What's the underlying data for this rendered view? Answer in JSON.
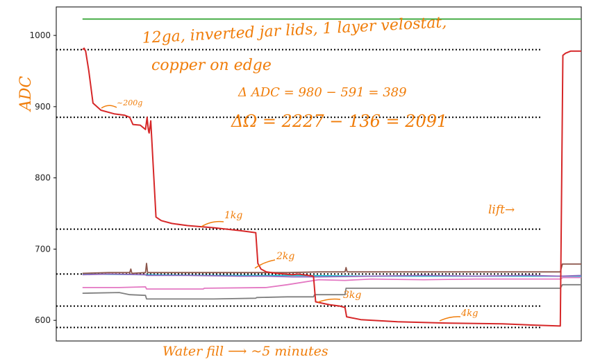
{
  "chart_data": {
    "type": "line",
    "ylim": [
      571,
      1040
    ],
    "xlim": [
      0,
      100
    ],
    "yticks": [
      600,
      700,
      800,
      900,
      1000
    ],
    "ytick_labels": [
      "600",
      "700",
      "800",
      "900",
      "1000"
    ],
    "grid": false,
    "series": [
      {
        "color": "#2ca02c",
        "x": [
          5,
          100
        ],
        "y": [
          1023,
          1023
        ]
      },
      {
        "color": "#d62728",
        "x": [
          5,
          5.3,
          5.6,
          6.2,
          7,
          8.5,
          11,
          13,
          14,
          14.3,
          14.6,
          16,
          17,
          17.3,
          17.5,
          17.6,
          17.7,
          18,
          19,
          20,
          22,
          25,
          30,
          35,
          38,
          38.4,
          39,
          40,
          42,
          45,
          46,
          48,
          49,
          49.4,
          52,
          54,
          55,
          55.3,
          58,
          65,
          75,
          85,
          92,
          96,
          96.5,
          97,
          98,
          100
        ],
        "y": [
          980,
          982,
          978,
          950,
          905,
          895,
          890,
          888,
          885,
          880,
          875,
          874,
          868,
          885,
          870,
          865,
          863,
          880,
          745,
          740,
          736,
          733,
          730,
          726,
          723,
          680,
          672,
          668,
          666,
          664,
          665,
          663,
          662,
          626,
          622,
          620,
          618,
          605,
          601,
          598,
          596,
          595,
          593,
          592,
          972,
          975,
          978,
          978
        ]
      },
      {
        "color": "#8c564b",
        "x": [
          5,
          10,
          14,
          14.2,
          14.4,
          17,
          17.2,
          17.4,
          20,
          30,
          40,
          44,
          50,
          55,
          55.2,
          55.4,
          70,
          96,
          96.4,
          100
        ],
        "y": [
          666,
          667,
          667,
          672,
          666,
          667,
          680,
          667,
          667,
          667,
          667,
          667,
          668,
          668,
          674,
          668,
          668,
          668,
          679,
          679
        ]
      },
      {
        "color": "#9467bd",
        "x": [
          5,
          10,
          17,
          17.2,
          25,
          35,
          40,
          45,
          50,
          60,
          70,
          80,
          90,
          96,
          100
        ],
        "y": [
          664,
          665,
          664,
          663,
          663,
          662,
          662,
          661,
          661,
          662,
          663,
          662,
          663,
          662,
          663
        ]
      },
      {
        "color": "#17becf",
        "x": [
          5,
          17,
          30,
          45,
          60,
          75,
          90,
          100
        ],
        "y": [
          665,
          664,
          663,
          663,
          662,
          662,
          662,
          662
        ]
      },
      {
        "color": "#e377c2",
        "x": [
          5,
          12,
          17,
          17.2,
          28,
          28.2,
          40,
          44,
          50,
          55,
          60,
          70,
          80,
          90,
          96,
          96.5,
          100
        ],
        "y": [
          646,
          646,
          647,
          644,
          644,
          645,
          646,
          650,
          657,
          656,
          658,
          657,
          658,
          658,
          658,
          660,
          660
        ]
      },
      {
        "color": "#7f7f7f",
        "x": [
          5,
          12,
          14,
          17,
          17.2,
          30,
          38,
          38.2,
          44,
          49,
          49.2,
          55,
          55.2,
          70,
          96,
          96.4,
          100
        ],
        "y": [
          638,
          639,
          636,
          635,
          630,
          630,
          631,
          632,
          633,
          633,
          636,
          636,
          645,
          645,
          645,
          650,
          650
        ]
      }
    ],
    "reference_lines": [
      980,
      885,
      728,
      665,
      620,
      590
    ],
    "annotations": [
      {
        "id": "title",
        "lines": [
          "12ga, inverted jar lids, 1 layer velostat,",
          "copper on edge"
        ]
      },
      {
        "id": "delta-adc",
        "text": "Δ ADC = 980 − 591 = 389"
      },
      {
        "id": "delta-ohm",
        "text": "ΔΩ = 2227 − 136 = 2091"
      },
      {
        "id": "w200",
        "text": "~200g"
      },
      {
        "id": "w1kg",
        "text": "1kg"
      },
      {
        "id": "w2kg",
        "text": "2kg"
      },
      {
        "id": "w3kg",
        "text": "3kg"
      },
      {
        "id": "w4kg",
        "text": "4kg"
      },
      {
        "id": "lift",
        "text": "lift→"
      },
      {
        "id": "ylabel",
        "text": "ADC"
      },
      {
        "id": "xlabel",
        "text": "Water fill ⟶ ~5 minutes"
      }
    ]
  }
}
